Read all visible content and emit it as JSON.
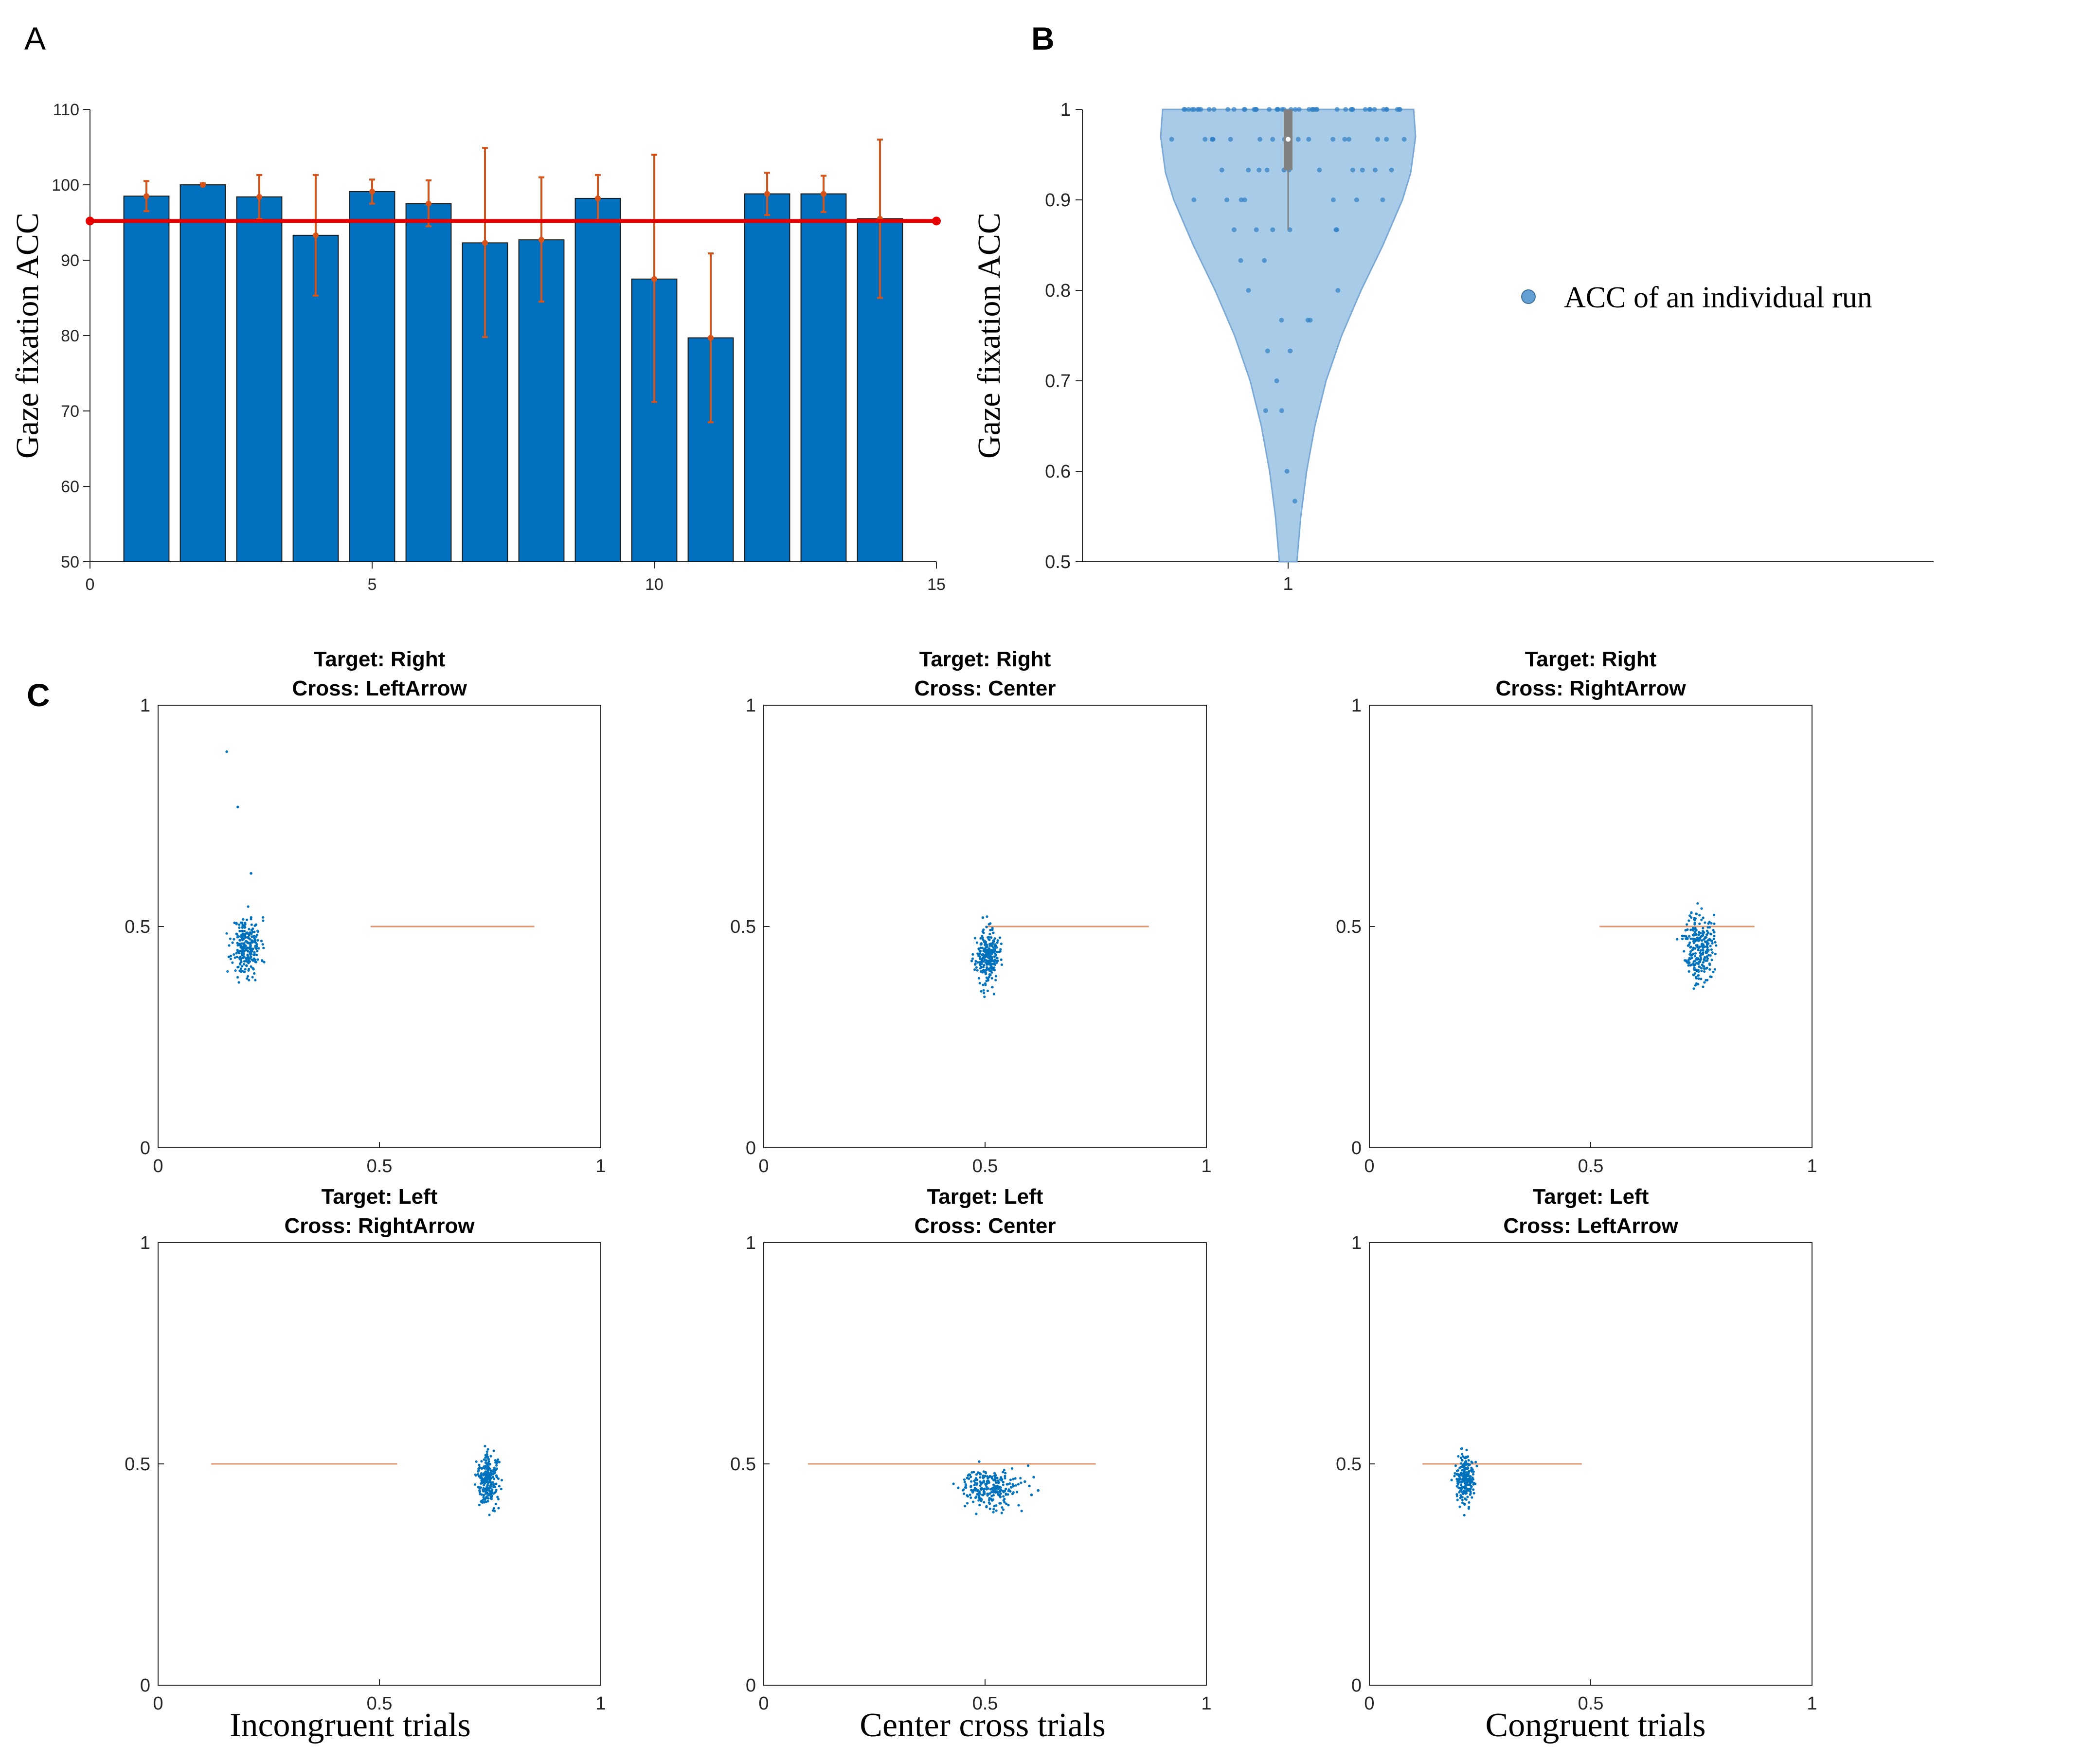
{
  "panel_labels": {
    "a": "A",
    "b": "B",
    "c": "C"
  },
  "colors": {
    "bar": "#0070bf",
    "error": "#d95319",
    "mean_line": "#e60000",
    "violin_fill": "#a8cbe8",
    "violin_edge": "#7aa9d6",
    "violin_point": "#2f7fc4",
    "box": "#808080",
    "gaze_point": "#0072bd",
    "target_line": "#e0956a",
    "axis": "#262626"
  },
  "chart_data": [
    {
      "id": "A",
      "type": "bar",
      "ylabel": "Gaze fixation ACC",
      "xlim": [
        0,
        15
      ],
      "ylim": [
        50,
        110
      ],
      "xticks": [
        "0",
        "5",
        "10",
        "15"
      ],
      "yticks": [
        "50",
        "60",
        "70",
        "80",
        "90",
        "100",
        "110"
      ],
      "x": [
        1,
        2,
        3,
        4,
        5,
        6,
        7,
        8,
        9,
        10,
        11,
        12,
        13,
        14
      ],
      "values": [
        98.5,
        100,
        98.4,
        93.3,
        99.1,
        97.5,
        92.3,
        92.7,
        98.2,
        87.5,
        79.7,
        98.8,
        98.8,
        95.5
      ],
      "error_low": [
        96.5,
        100,
        95.5,
        85.3,
        97.5,
        94.5,
        79.8,
        84.5,
        95.1,
        71.2,
        68.5,
        96.0,
        96.4,
        85.0
      ],
      "error_high": [
        100.5,
        100.2,
        101.3,
        101.3,
        100.7,
        100.6,
        104.9,
        101.0,
        101.3,
        104.0,
        90.9,
        101.6,
        101.2,
        106.0
      ],
      "mean_line": 95.2
    },
    {
      "id": "B",
      "type": "violin",
      "ylabel": "Gaze fixation ACC",
      "ylim": [
        0.5,
        1.0
      ],
      "yticks": [
        "0.5",
        "0.6",
        "0.7",
        "0.8",
        "0.9",
        "1"
      ],
      "xticks": [
        "1"
      ],
      "legend": "ACC of an individual run",
      "median": 0.967,
      "q1": 0.933,
      "q3": 1.0,
      "whisker_low": 0.867,
      "points": [
        1.0,
        1.0,
        1.0,
        1.0,
        1.0,
        1.0,
        1.0,
        1.0,
        1.0,
        1.0,
        1.0,
        1.0,
        1.0,
        1.0,
        1.0,
        1.0,
        1.0,
        1.0,
        1.0,
        1.0,
        1.0,
        1.0,
        1.0,
        1.0,
        1.0,
        1.0,
        1.0,
        1.0,
        1.0,
        1.0,
        1.0,
        1.0,
        1.0,
        1.0,
        1.0,
        1.0,
        1.0,
        1.0,
        1.0,
        1.0,
        1.0,
        1.0,
        1.0,
        1.0,
        1.0,
        1.0,
        1.0,
        1.0,
        0.967,
        0.967,
        0.967,
        0.967,
        0.967,
        0.967,
        0.967,
        0.967,
        0.967,
        0.967,
        0.967,
        0.967,
        0.967,
        0.967,
        0.967,
        0.967,
        0.967,
        0.967,
        0.933,
        0.933,
        0.933,
        0.933,
        0.933,
        0.933,
        0.933,
        0.933,
        0.933,
        0.933,
        0.933,
        0.9,
        0.9,
        0.9,
        0.9,
        0.9,
        0.9,
        0.9,
        0.867,
        0.867,
        0.867,
        0.867,
        0.867,
        0.867,
        0.833,
        0.833,
        0.8,
        0.8,
        0.767,
        0.767,
        0.767,
        0.733,
        0.733,
        0.7,
        0.667,
        0.667,
        0.6,
        0.567
      ]
    },
    {
      "id": "C1",
      "type": "scatter",
      "title": [
        "Target: Right",
        "Cross: LeftArrow"
      ],
      "xlim": [
        0,
        1
      ],
      "ylim": [
        0,
        1
      ],
      "xticks": [
        "0",
        "0.5",
        "1"
      ],
      "yticks": [
        "0",
        "0.5",
        "1"
      ],
      "cluster": {
        "cx": 0.2,
        "cy": 0.455,
        "sx": 0.016,
        "sy": 0.033,
        "n": 260,
        "seed": 11
      },
      "outliers": [
        [
          0.155,
          0.895
        ],
        [
          0.18,
          0.77
        ],
        [
          0.21,
          0.62
        ]
      ],
      "target_line": {
        "x0": 0.48,
        "x1": 0.85,
        "y": 0.5
      }
    },
    {
      "id": "C2",
      "type": "scatter",
      "title": [
        "Target: Right",
        "Cross: Center"
      ],
      "xlim": [
        0,
        1
      ],
      "ylim": [
        0,
        1
      ],
      "xticks": [
        "0",
        "0.5",
        "1"
      ],
      "yticks": [
        "0",
        "0.5",
        "1"
      ],
      "cluster": {
        "cx": 0.505,
        "cy": 0.43,
        "sx": 0.013,
        "sy": 0.03,
        "n": 260,
        "seed": 23
      },
      "outliers": [
        [
          0.495,
          0.52
        ]
      ],
      "target_line": {
        "x0": 0.5,
        "x1": 0.87,
        "y": 0.5
      }
    },
    {
      "id": "C3",
      "type": "scatter",
      "title": [
        "Target: Right",
        "Cross: RightArrow"
      ],
      "xlim": [
        0,
        1
      ],
      "ylim": [
        0,
        1
      ],
      "xticks": [
        "0",
        "0.5",
        "1"
      ],
      "yticks": [
        "0",
        "0.5",
        "1"
      ],
      "cluster": {
        "cx": 0.745,
        "cy": 0.455,
        "sx": 0.016,
        "sy": 0.04,
        "n": 260,
        "seed": 37
      },
      "outliers": [],
      "target_line": {
        "x0": 0.52,
        "x1": 0.87,
        "y": 0.5
      }
    },
    {
      "id": "C4",
      "type": "scatter",
      "title": [
        "Target: Left",
        "Cross: RightArrow"
      ],
      "xlim": [
        0,
        1
      ],
      "ylim": [
        0,
        1
      ],
      "xticks": [
        "0",
        "0.5",
        "1"
      ],
      "yticks": [
        "0",
        "0.5",
        "1"
      ],
      "cluster": {
        "cx": 0.745,
        "cy": 0.465,
        "sx": 0.012,
        "sy": 0.028,
        "n": 260,
        "seed": 41
      },
      "outliers": [],
      "target_line": {
        "x0": 0.12,
        "x1": 0.54,
        "y": 0.5
      }
    },
    {
      "id": "C5",
      "type": "scatter",
      "title": [
        "Target: Left",
        "Cross: Center"
      ],
      "xlim": [
        0,
        1
      ],
      "ylim": [
        0,
        1
      ],
      "xticks": [
        "0",
        "0.5",
        "1"
      ],
      "yticks": [
        "0",
        "0.5",
        "1"
      ],
      "cluster": {
        "cx": 0.51,
        "cy": 0.445,
        "sx": 0.024,
        "sy": 0.022,
        "n": 260,
        "seed": 53
      },
      "outliers": [
        [
          0.6,
          0.45
        ],
        [
          0.61,
          0.47
        ],
        [
          0.62,
          0.44
        ],
        [
          0.59,
          0.46
        ],
        [
          0.605,
          0.43
        ]
      ],
      "target_line": {
        "x0": 0.1,
        "x1": 0.75,
        "y": 0.5
      }
    },
    {
      "id": "C6",
      "type": "scatter",
      "title": [
        "Target: Left",
        "Cross: LeftArrow"
      ],
      "xlim": [
        0,
        1
      ],
      "ylim": [
        0,
        1
      ],
      "xticks": [
        "0",
        "0.5",
        "1"
      ],
      "yticks": [
        "0",
        "0.5",
        "1"
      ],
      "cluster": {
        "cx": 0.215,
        "cy": 0.46,
        "sx": 0.01,
        "sy": 0.028,
        "n": 220,
        "seed": 67
      },
      "outliers": [],
      "target_line": {
        "x0": 0.12,
        "x1": 0.48,
        "y": 0.5
      }
    }
  ],
  "column_labels": [
    "Incongruent trials",
    "Center cross trials",
    "Congruent trials"
  ]
}
